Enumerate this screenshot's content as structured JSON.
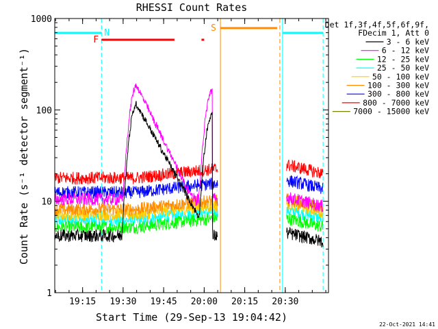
{
  "chart_data": {
    "type": "line",
    "title": "RHESSI Count Rates",
    "xlabel": "Start Time (29-Sep-13 19:04:42)",
    "ylabel": "Count Rate (s⁻¹ detector segment⁻¹)",
    "y_scale": "log",
    "ylim": [
      1,
      1000
    ],
    "xlim": [
      "19:04:42",
      "20:46:00"
    ],
    "x_ticks": [
      "19:15",
      "19:30",
      "19:45",
      "20:00",
      "20:15",
      "20:30"
    ],
    "y_ticks": [
      "1",
      "10",
      "100",
      "1000"
    ],
    "legend_header": [
      "Det 1f,3f,4f,5f,6f,9f,",
      "FDecim 1, Att 0"
    ],
    "legend_position": "right",
    "series": [
      {
        "name": "3 - 6 keV",
        "color": "#000000",
        "level_pre": 4.2,
        "level_post": 4.5,
        "flares": [
          {
            "peak": "19:35",
            "value": 115,
            "rise": 3,
            "decay": 18
          },
          {
            "peak": "20:03",
            "value": 90,
            "rise": 3,
            "decay": 0
          }
        ]
      },
      {
        "name": "6 - 12 keV",
        "color": "#ff00ff",
        "level_pre": 10.5,
        "level_post": 11,
        "flares": [
          {
            "peak": "19:35",
            "value": 185,
            "rise": 3,
            "decay": 16
          },
          {
            "peak": "20:03",
            "value": 165,
            "rise": 3,
            "decay": 0
          }
        ]
      },
      {
        "name": "12 - 25 keV",
        "color": "#00ff00",
        "level_pre": 5.2,
        "level_post": 6.5,
        "flares": []
      },
      {
        "name": "25 - 50 keV",
        "color": "#00ffff",
        "level_pre": 6.2,
        "level_post": 8.0,
        "flares": []
      },
      {
        "name": "50 - 100 keV",
        "color": "#ffcc00",
        "level_pre": 7.2,
        "level_post": 9.5,
        "flares": []
      },
      {
        "name": "100 - 300 keV",
        "color": "#ff8c00",
        "level_pre": 8.2,
        "level_post": 10.5,
        "flares": []
      },
      {
        "name": "300 - 800 keV",
        "color": "#0000ff",
        "level_pre": 12.5,
        "level_post": 17,
        "flares": []
      },
      {
        "name": "800 - 7000 keV",
        "color": "#ff0000",
        "level_pre": 18,
        "level_post": 25,
        "flares": []
      },
      {
        "name": "7000 - 15000 keV",
        "color": "#808000",
        "level_pre": 0,
        "level_post": 0,
        "flares": []
      }
    ],
    "data_gap": [
      "20:05",
      "20:29"
    ],
    "markers": [
      {
        "label": "N",
        "color": "#00ffff",
        "type": "night",
        "ranges": [
          [
            "19:04:42",
            "19:22"
          ],
          [
            "20:29",
            "20:44"
          ]
        ]
      },
      {
        "label": "S",
        "color": "#ff8c00",
        "type": "saa",
        "ranges": [
          [
            "20:06",
            "20:27"
          ]
        ]
      },
      {
        "label": "F",
        "color": "#ff0000",
        "type": "flare",
        "ranges": [
          [
            "19:22",
            "19:49"
          ],
          [
            "19:59",
            "20:00"
          ]
        ]
      }
    ],
    "vlines": [
      {
        "time": "19:04:42",
        "color": "#00ffff",
        "style": "solid"
      },
      {
        "time": "19:22",
        "color": "#00ffff",
        "style": "dashed"
      },
      {
        "time": "20:06",
        "color": "#ff8c00",
        "style": "solid"
      },
      {
        "time": "20:28",
        "color": "#ff8c00",
        "style": "dashed"
      },
      {
        "time": "20:29",
        "color": "#00ffff",
        "style": "solid"
      },
      {
        "time": "20:44",
        "color": "#00ffff",
        "style": "dashed"
      }
    ]
  },
  "footer_date": "22-Oct-2021 14:41",
  "colors": {
    "background": "#ffffff",
    "axes": "#000000"
  }
}
